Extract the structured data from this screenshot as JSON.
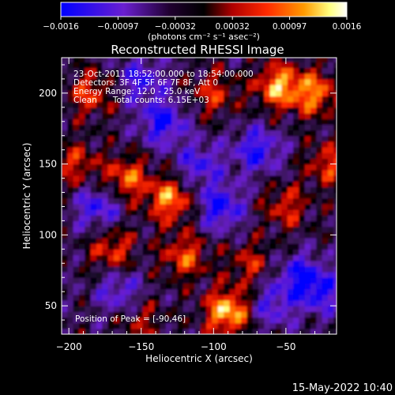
{
  "chart_data": {
    "type": "heatmap",
    "title": "Reconstructed RHESSI Image",
    "xlabel": "Heliocentric X (arcsec)",
    "ylabel": "Heliocentric Y (arcsec)",
    "xlim": [
      -205,
      -15
    ],
    "ylim": [
      30,
      225
    ],
    "x_ticks": [
      -200,
      -150,
      -100,
      -50
    ],
    "y_ticks": [
      50,
      100,
      150,
      200
    ],
    "x_tick_labels": [
      "−200",
      "−150",
      "−100",
      "−50"
    ],
    "y_tick_labels": [
      "50",
      "100",
      "150",
      "200"
    ],
    "colorbar": {
      "range": [
        -0.0016,
        0.0016
      ],
      "ticks": [
        "−0.0016",
        "−0.00097",
        "−0.00032",
        "0.00032",
        "0.00097",
        "0.0016"
      ],
      "units": "(photons cm⁻² s⁻¹ asec⁻²)",
      "colors": [
        "#0000ff",
        "#6a1fd0",
        "#000000",
        "#b00000",
        "#ff2a00",
        "#ff9a00",
        "#ffff80",
        "#ffffff"
      ]
    },
    "annotations": [
      "23-Oct-2011 18:52:00.000 to 18:54:00.000",
      "Detectors: 3F 4F 5F 6F 7F 8F, Att 0",
      "Energy Range: 12.0 - 25.0 keV",
      "Clean      Total counts: 6.15E+03"
    ],
    "peak_label": "Position of Peak = [-90,46]",
    "peak": [
      -90,
      46
    ],
    "hotspots": [
      {
        "x": -55,
        "y": 205,
        "value": 0.0014
      },
      {
        "x": -30,
        "y": 200,
        "value": 0.0012
      },
      {
        "x": -130,
        "y": 125,
        "value": 0.0013
      },
      {
        "x": -160,
        "y": 140,
        "value": 0.0011
      },
      {
        "x": -120,
        "y": 85,
        "value": 0.001
      },
      {
        "x": -90,
        "y": 46,
        "value": 0.0016
      },
      {
        "x": -170,
        "y": 90,
        "value": 0.0009
      },
      {
        "x": -185,
        "y": 200,
        "value": 0.0009
      },
      {
        "x": -100,
        "y": 200,
        "value": 0.0008
      },
      {
        "x": -50,
        "y": 120,
        "value": 0.0008
      },
      {
        "x": -20,
        "y": 150,
        "value": 0.0009
      },
      {
        "x": -75,
        "y": 80,
        "value": 0.0007
      },
      {
        "x": -195,
        "y": 150,
        "value": 0.0008
      },
      {
        "x": -150,
        "y": 40,
        "value": 0.0006
      }
    ],
    "coldspots": [
      {
        "x": -135,
        "y": 180,
        "value": -0.0012
      },
      {
        "x": -180,
        "y": 120,
        "value": -0.001
      },
      {
        "x": -95,
        "y": 120,
        "value": -0.0012
      },
      {
        "x": -70,
        "y": 160,
        "value": -0.0011
      },
      {
        "x": -40,
        "y": 70,
        "value": -0.0011
      },
      {
        "x": -25,
        "y": 60,
        "value": -0.0009
      },
      {
        "x": -165,
        "y": 60,
        "value": -0.0008
      },
      {
        "x": -150,
        "y": 210,
        "value": -0.0009
      },
      {
        "x": -60,
        "y": 50,
        "value": -0.0008
      },
      {
        "x": -110,
        "y": 150,
        "value": -0.0009
      }
    ]
  },
  "footer": {
    "datetime": "15-May-2022 10:40"
  }
}
